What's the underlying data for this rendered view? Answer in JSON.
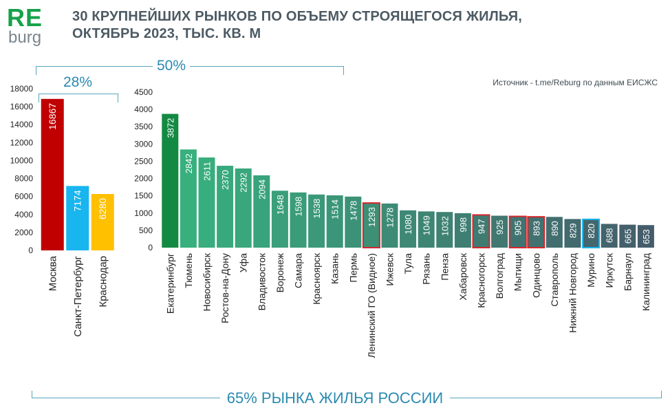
{
  "logo": {
    "top": "RE",
    "bottom": "burg"
  },
  "title": {
    "line1": "30 КРУПНЕЙШИХ РЫНКОВ ПО ОБЪЕМУ СТРОЯЩЕГОСЯ ЖИЛЬЯ,",
    "line2": "ОКТЯБРЬ 2023, ТЫС. КВ. М"
  },
  "source": "Источник - t.me/Reburg по данным ЕИСЖС",
  "annotations": {
    "top3": "28%",
    "top10": "50%",
    "all30": "65% РЫНКА ЖИЛЬЯ РОССИИ"
  },
  "colors": {
    "moscow": "#c00000",
    "spb": "#19b5ef",
    "krasnodar": "#ffc000",
    "ekb": "#138a42",
    "grad_start": "#37b07e",
    "grad_end": "#455d6b",
    "highlight_red": "#d7262b",
    "highlight_blue": "#19b5ef",
    "brace": "#58a3bd",
    "axis_text": "#222222"
  },
  "chart_data": [
    {
      "type": "bar",
      "categories": [
        "Москва",
        "Санкт-Петербург",
        "Краснодар"
      ],
      "values": [
        16867,
        7174,
        6280
      ],
      "ylim": [
        0,
        18000
      ],
      "yticks": [
        0,
        2000,
        4000,
        6000,
        8000,
        10000,
        12000,
        14000,
        16000,
        18000
      ]
    },
    {
      "type": "bar",
      "categories": [
        "Екатеринбург",
        "Тюмень",
        "Новосибирск",
        "Ростов-на-Дону",
        "Уфа",
        "Владивосток",
        "Воронеж",
        "Самара",
        "Красноярск",
        "Казань",
        "Пермь",
        "Ленинский ГО (Видное)",
        "Ижевск",
        "Тула",
        "Рязань",
        "Пенза",
        "Хабаровск",
        "Красногорск",
        "Волгоград",
        "Мытищи",
        "Одинцово",
        "Ставрополь",
        "Нижний Новгород",
        "Мурино",
        "Иркутск",
        "Барнаул",
        "Калининград"
      ],
      "values": [
        3872,
        2842,
        2611,
        2370,
        2292,
        2094,
        1648,
        1598,
        1538,
        1514,
        1478,
        1293,
        1278,
        1080,
        1049,
        1032,
        998,
        947,
        925,
        905,
        893,
        890,
        829,
        820,
        688,
        665,
        653
      ],
      "highlight": [
        "",
        "",
        "",
        "",
        "",
        "",
        "",
        "",
        "",
        "",
        "",
        "red",
        "",
        "",
        "",
        "",
        "",
        "red",
        "",
        "red",
        "red",
        "",
        "",
        "blue",
        "",
        "",
        ""
      ],
      "ylim": [
        0,
        4500
      ],
      "yticks": [
        0,
        500,
        1000,
        1500,
        2000,
        2500,
        3000,
        3500,
        4000,
        4500
      ]
    }
  ]
}
